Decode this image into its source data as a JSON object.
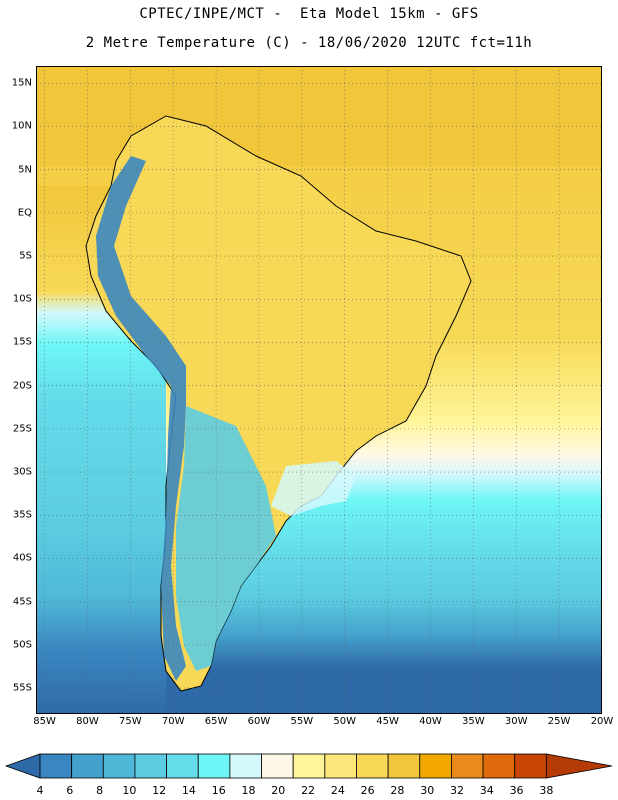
{
  "header": {
    "line1": "CPTEC/INPE/MCT -  Eta Model 15km - GFS",
    "line2": "2 Metre Temperature (C) - 18/06/2020 12UTC fct=11h"
  },
  "map": {
    "lat_ticks": [
      "15N",
      "10N",
      "5N",
      "EQ",
      "5S",
      "10S",
      "15S",
      "20S",
      "25S",
      "30S",
      "35S",
      "40S",
      "45S",
      "50S",
      "55S"
    ],
    "lon_ticks": [
      "85W",
      "80W",
      "75W",
      "70W",
      "65W",
      "60W",
      "55W",
      "50W",
      "45W",
      "40W",
      "35W",
      "30W",
      "25W",
      "20W"
    ],
    "lat_range": [
      -58,
      17
    ],
    "lon_range": [
      -86,
      -20
    ]
  },
  "legend": {
    "labels": [
      "4",
      "6",
      "8",
      "10",
      "12",
      "14",
      "16",
      "18",
      "20",
      "22",
      "24",
      "26",
      "28",
      "30",
      "32",
      "34",
      "36",
      "38"
    ],
    "colors": [
      "#2f6aa8",
      "#3a86c0",
      "#44a0cc",
      "#4fb8d8",
      "#5ccce0",
      "#64dcea",
      "#6ef6f6",
      "#d4f8fc",
      "#fff8e6",
      "#fff59a",
      "#fde77a",
      "#f7d957",
      "#f1c63a",
      "#f3a800",
      "#ea8a1a",
      "#de6a0c",
      "#c84604",
      "#b43a06"
    ]
  }
}
